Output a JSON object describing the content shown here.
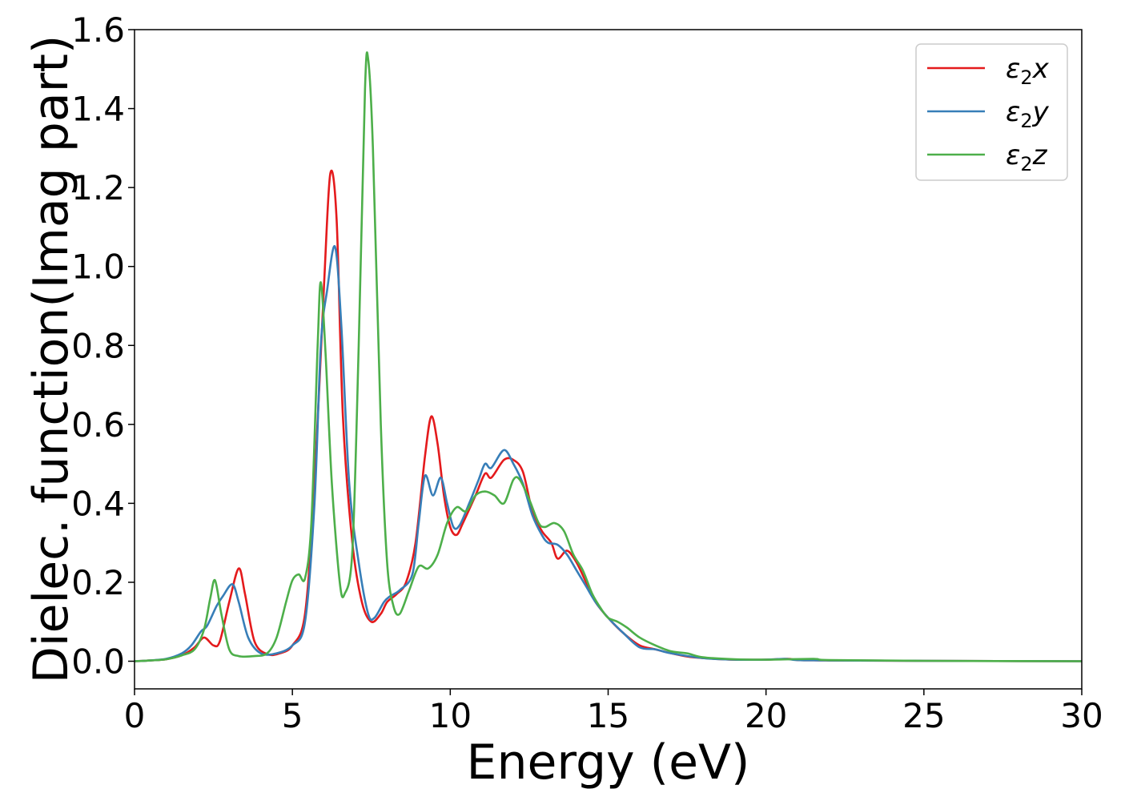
{
  "chart_data": {
    "type": "line",
    "title": "",
    "xlabel": "Energy (eV)",
    "ylabel": "Dielec. function(Imag part)",
    "xlim": [
      0,
      30
    ],
    "ylim": [
      -0.07,
      1.6
    ],
    "xticks": [
      0,
      5,
      10,
      15,
      20,
      25,
      30
    ],
    "xtick_labels": [
      "0",
      "5",
      "10",
      "15",
      "20",
      "25",
      "30"
    ],
    "yticks": [
      0.0,
      0.2,
      0.4,
      0.6,
      0.8,
      1.0,
      1.2,
      1.4,
      1.6
    ],
    "ytick_labels": [
      "0.0",
      "0.2",
      "0.4",
      "0.6",
      "0.8",
      "1.0",
      "1.2",
      "1.4",
      "1.6"
    ],
    "grid": false,
    "legend_position": "top-right",
    "series": [
      {
        "name": "ε2x",
        "legend_base": "ε",
        "legend_sub": "2",
        "legend_tail": "x",
        "color": "#e41a1c",
        "points": [
          [
            0,
            0
          ],
          [
            0.5,
            0.002
          ],
          [
            1.0,
            0.005
          ],
          [
            1.5,
            0.015
          ],
          [
            1.9,
            0.035
          ],
          [
            2.2,
            0.06
          ],
          [
            2.5,
            0.04
          ],
          [
            2.7,
            0.05
          ],
          [
            3.0,
            0.15
          ],
          [
            3.3,
            0.235
          ],
          [
            3.5,
            0.17
          ],
          [
            3.8,
            0.05
          ],
          [
            4.2,
            0.018
          ],
          [
            4.6,
            0.02
          ],
          [
            5.0,
            0.04
          ],
          [
            5.4,
            0.12
          ],
          [
            5.7,
            0.45
          ],
          [
            6.0,
            0.95
          ],
          [
            6.2,
            1.235
          ],
          [
            6.4,
            1.12
          ],
          [
            6.6,
            0.62
          ],
          [
            6.9,
            0.3
          ],
          [
            7.2,
            0.15
          ],
          [
            7.5,
            0.1
          ],
          [
            7.8,
            0.12
          ],
          [
            8.0,
            0.15
          ],
          [
            8.3,
            0.17
          ],
          [
            8.6,
            0.2
          ],
          [
            8.9,
            0.3
          ],
          [
            9.2,
            0.52
          ],
          [
            9.4,
            0.62
          ],
          [
            9.6,
            0.55
          ],
          [
            9.8,
            0.42
          ],
          [
            10.0,
            0.34
          ],
          [
            10.2,
            0.32
          ],
          [
            10.4,
            0.35
          ],
          [
            10.8,
            0.42
          ],
          [
            11.1,
            0.475
          ],
          [
            11.3,
            0.465
          ],
          [
            11.7,
            0.51
          ],
          [
            12.0,
            0.51
          ],
          [
            12.3,
            0.48
          ],
          [
            12.6,
            0.38
          ],
          [
            12.9,
            0.33
          ],
          [
            13.2,
            0.3
          ],
          [
            13.4,
            0.26
          ],
          [
            13.7,
            0.28
          ],
          [
            14.0,
            0.25
          ],
          [
            14.3,
            0.2
          ],
          [
            14.6,
            0.15
          ],
          [
            15.0,
            0.11
          ],
          [
            15.5,
            0.07
          ],
          [
            16.0,
            0.04
          ],
          [
            16.5,
            0.03
          ],
          [
            17.0,
            0.02
          ],
          [
            17.5,
            0.012
          ],
          [
            18.0,
            0.008
          ],
          [
            19.0,
            0.004
          ],
          [
            20.0,
            0.004
          ],
          [
            20.7,
            0.006
          ],
          [
            21.0,
            0.003
          ],
          [
            22.0,
            0.002
          ],
          [
            25.0,
            0.001
          ],
          [
            30.0,
            0.0
          ]
        ]
      },
      {
        "name": "ε2y",
        "legend_base": "ε",
        "legend_sub": "2",
        "legend_tail": "y",
        "color": "#377eb8",
        "points": [
          [
            0,
            0
          ],
          [
            0.5,
            0.002
          ],
          [
            1.0,
            0.006
          ],
          [
            1.5,
            0.02
          ],
          [
            1.8,
            0.04
          ],
          [
            2.1,
            0.075
          ],
          [
            2.3,
            0.09
          ],
          [
            2.6,
            0.14
          ],
          [
            2.8,
            0.165
          ],
          [
            3.1,
            0.195
          ],
          [
            3.3,
            0.15
          ],
          [
            3.6,
            0.06
          ],
          [
            4.0,
            0.02
          ],
          [
            4.5,
            0.02
          ],
          [
            5.0,
            0.04
          ],
          [
            5.4,
            0.1
          ],
          [
            5.7,
            0.4
          ],
          [
            5.9,
            0.8
          ],
          [
            6.1,
            0.94
          ],
          [
            6.35,
            1.05
          ],
          [
            6.55,
            0.85
          ],
          [
            6.8,
            0.45
          ],
          [
            7.1,
            0.25
          ],
          [
            7.4,
            0.12
          ],
          [
            7.6,
            0.11
          ],
          [
            7.9,
            0.15
          ],
          [
            8.1,
            0.165
          ],
          [
            8.4,
            0.18
          ],
          [
            8.8,
            0.22
          ],
          [
            9.0,
            0.35
          ],
          [
            9.2,
            0.47
          ],
          [
            9.45,
            0.42
          ],
          [
            9.7,
            0.465
          ],
          [
            9.9,
            0.4
          ],
          [
            10.1,
            0.34
          ],
          [
            10.3,
            0.345
          ],
          [
            10.6,
            0.4
          ],
          [
            10.9,
            0.46
          ],
          [
            11.1,
            0.5
          ],
          [
            11.3,
            0.49
          ],
          [
            11.7,
            0.535
          ],
          [
            12.0,
            0.5
          ],
          [
            12.3,
            0.45
          ],
          [
            12.6,
            0.37
          ],
          [
            12.9,
            0.32
          ],
          [
            13.1,
            0.3
          ],
          [
            13.4,
            0.295
          ],
          [
            13.7,
            0.27
          ],
          [
            14.0,
            0.23
          ],
          [
            14.3,
            0.19
          ],
          [
            14.6,
            0.15
          ],
          [
            15.0,
            0.11
          ],
          [
            15.5,
            0.07
          ],
          [
            16.0,
            0.035
          ],
          [
            16.5,
            0.03
          ],
          [
            17.0,
            0.02
          ],
          [
            18.0,
            0.008
          ],
          [
            19.0,
            0.004
          ],
          [
            20.0,
            0.004
          ],
          [
            20.6,
            0.006
          ],
          [
            21.0,
            0.003
          ],
          [
            22.0,
            0.002
          ],
          [
            25.0,
            0.001
          ],
          [
            30.0,
            0.0
          ]
        ]
      },
      {
        "name": "ε2z",
        "legend_base": "ε",
        "legend_sub": "2",
        "legend_tail": "z",
        "color": "#4daf4a",
        "points": [
          [
            0,
            0
          ],
          [
            0.5,
            0.002
          ],
          [
            1.0,
            0.005
          ],
          [
            1.5,
            0.015
          ],
          [
            1.9,
            0.03
          ],
          [
            2.2,
            0.08
          ],
          [
            2.4,
            0.16
          ],
          [
            2.55,
            0.205
          ],
          [
            2.75,
            0.12
          ],
          [
            3.0,
            0.03
          ],
          [
            3.3,
            0.013
          ],
          [
            3.8,
            0.013
          ],
          [
            4.2,
            0.02
          ],
          [
            4.5,
            0.06
          ],
          [
            4.8,
            0.15
          ],
          [
            5.0,
            0.205
          ],
          [
            5.2,
            0.22
          ],
          [
            5.4,
            0.21
          ],
          [
            5.6,
            0.35
          ],
          [
            5.8,
            0.8
          ],
          [
            5.9,
            0.96
          ],
          [
            6.05,
            0.78
          ],
          [
            6.25,
            0.45
          ],
          [
            6.5,
            0.2
          ],
          [
            6.65,
            0.17
          ],
          [
            6.9,
            0.28
          ],
          [
            7.1,
            0.8
          ],
          [
            7.3,
            1.45
          ],
          [
            7.4,
            1.525
          ],
          [
            7.55,
            1.3
          ],
          [
            7.8,
            0.6
          ],
          [
            8.0,
            0.25
          ],
          [
            8.2,
            0.14
          ],
          [
            8.4,
            0.12
          ],
          [
            8.7,
            0.18
          ],
          [
            9.0,
            0.24
          ],
          [
            9.3,
            0.235
          ],
          [
            9.6,
            0.27
          ],
          [
            9.9,
            0.35
          ],
          [
            10.2,
            0.39
          ],
          [
            10.5,
            0.38
          ],
          [
            10.8,
            0.42
          ],
          [
            11.1,
            0.43
          ],
          [
            11.4,
            0.42
          ],
          [
            11.7,
            0.4
          ],
          [
            12.0,
            0.46
          ],
          [
            12.2,
            0.46
          ],
          [
            12.5,
            0.41
          ],
          [
            12.8,
            0.35
          ],
          [
            13.0,
            0.34
          ],
          [
            13.3,
            0.35
          ],
          [
            13.6,
            0.33
          ],
          [
            13.9,
            0.27
          ],
          [
            14.2,
            0.23
          ],
          [
            14.5,
            0.17
          ],
          [
            14.8,
            0.13
          ],
          [
            15.0,
            0.11
          ],
          [
            15.3,
            0.1
          ],
          [
            15.6,
            0.085
          ],
          [
            16.0,
            0.06
          ],
          [
            16.5,
            0.04
          ],
          [
            17.0,
            0.025
          ],
          [
            17.5,
            0.02
          ],
          [
            18.0,
            0.01
          ],
          [
            19.0,
            0.005
          ],
          [
            20.0,
            0.004
          ],
          [
            21.5,
            0.006
          ],
          [
            22.0,
            0.003
          ],
          [
            25.0,
            0.001
          ],
          [
            30.0,
            0.0
          ]
        ]
      }
    ]
  }
}
